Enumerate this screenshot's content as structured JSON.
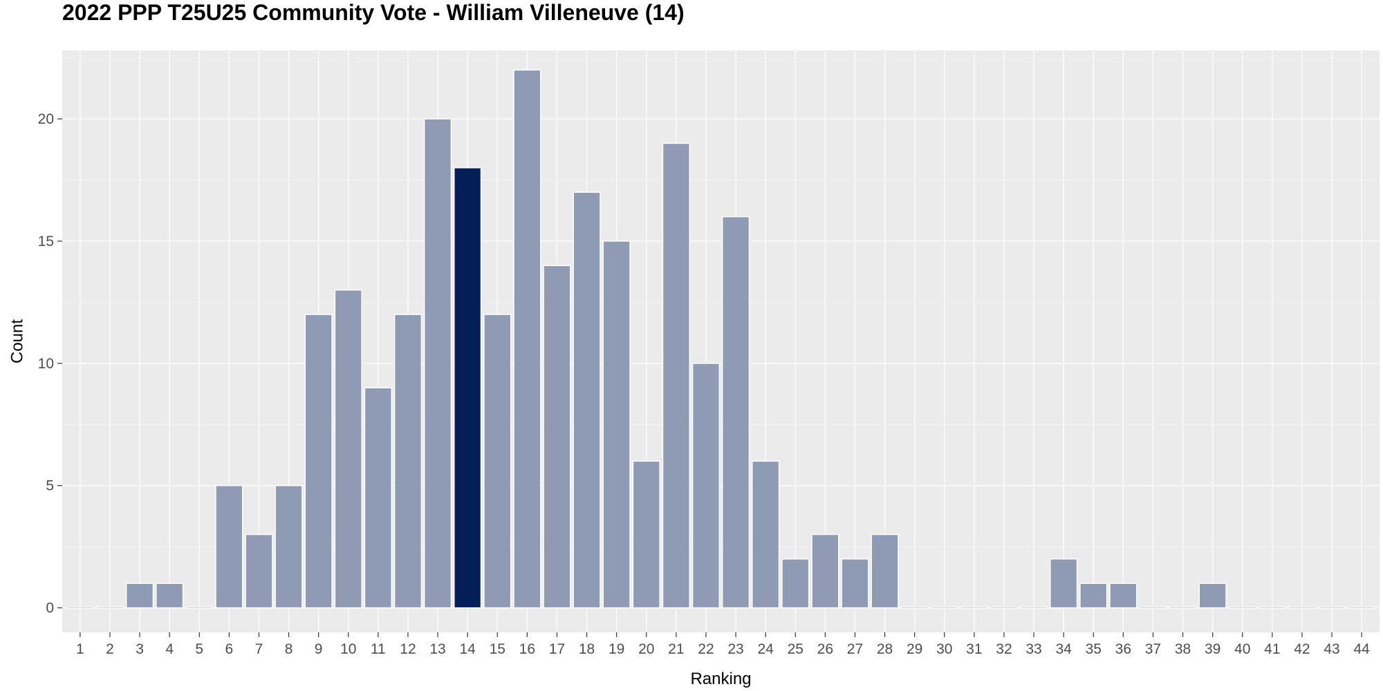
{
  "chart_data": {
    "type": "bar",
    "title": "2022 PPP T25U25 Community Vote - William Villeneuve (14)",
    "xlabel": "Ranking",
    "ylabel": "Count",
    "categories": [
      "1",
      "2",
      "3",
      "4",
      "5",
      "6",
      "7",
      "8",
      "9",
      "10",
      "11",
      "12",
      "13",
      "14",
      "15",
      "16",
      "17",
      "18",
      "19",
      "20",
      "21",
      "22",
      "23",
      "24",
      "25",
      "26",
      "27",
      "28",
      "29",
      "30",
      "31",
      "32",
      "33",
      "34",
      "35",
      "36",
      "37",
      "38",
      "39",
      "40",
      "41",
      "42",
      "43",
      "44"
    ],
    "values": [
      0,
      0,
      1,
      1,
      0,
      5,
      3,
      5,
      12,
      13,
      9,
      12,
      20,
      18,
      12,
      22,
      14,
      17,
      15,
      6,
      19,
      10,
      16,
      6,
      2,
      3,
      2,
      3,
      0,
      0,
      0,
      0,
      0,
      2,
      1,
      1,
      0,
      0,
      1,
      0,
      0,
      0,
      0,
      0
    ],
    "highlight_category": "14",
    "ylim": [
      -1,
      22.8
    ],
    "yticks": [
      0,
      5,
      10,
      15,
      20
    ],
    "grid": true,
    "legend": "none",
    "colors": {
      "bar": "#8f9ab4",
      "highlight": "#041e57",
      "panel": "#ebebeb",
      "grid_major": "#ffffff",
      "grid_minor": "#f4f4f4"
    }
  }
}
